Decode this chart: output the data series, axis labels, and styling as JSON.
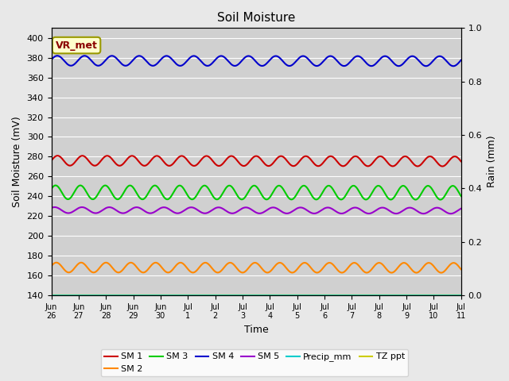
{
  "title": "Soil Moisture",
  "xlabel": "Time",
  "ylabel_left": "Soil Moisture (mV)",
  "ylabel_right": "Rain (mm)",
  "ylim_left": [
    140,
    410
  ],
  "ylim_right": [
    0.0,
    1.0
  ],
  "yticks_left": [
    140,
    160,
    180,
    200,
    220,
    240,
    260,
    280,
    300,
    320,
    340,
    360,
    380,
    400
  ],
  "yticks_right": [
    0.0,
    0.2,
    0.4,
    0.6,
    0.8,
    1.0
  ],
  "background_color": "#e8e8e8",
  "plot_bg_color": "#d0d0d0",
  "annotation_text": "VR_met",
  "annotation_bg": "#ffffcc",
  "annotation_fg": "#8b0000",
  "series": {
    "SM1": {
      "color": "#cc0000",
      "base": 276,
      "amplitude": 5,
      "trend": -0.05,
      "freq_per_day": 1.1,
      "phase": 0.0
    },
    "SM2": {
      "color": "#ff8800",
      "base": 168,
      "amplitude": 5,
      "trend": -0.02,
      "freq_per_day": 1.1,
      "phase": 0.3
    },
    "SM3": {
      "color": "#00cc00",
      "base": 244,
      "amplitude": 7,
      "trend": -0.03,
      "freq_per_day": 1.1,
      "phase": 0.5
    },
    "SM4": {
      "color": "#0000cc",
      "base": 377,
      "amplitude": 5,
      "trend": -0.03,
      "freq_per_day": 1.0,
      "phase": 0.2
    },
    "SM5": {
      "color": "#9900cc",
      "base": 226,
      "amplitude": 3,
      "trend": -0.04,
      "freq_per_day": 1.0,
      "phase": 0.8
    },
    "Precip_mm": {
      "color": "#00cccc",
      "base": 0,
      "amplitude": 0,
      "trend": 0,
      "freq_per_day": 0,
      "phase": 0
    },
    "TZ_ppt": {
      "color": "#cccc00",
      "base": 140,
      "amplitude": 0,
      "trend": 0,
      "freq_per_day": 0,
      "phase": 0
    }
  },
  "legend_labels": [
    "SM 1",
    "SM 2",
    "SM 3",
    "SM 4",
    "SM 5",
    "Precip_mm",
    "TZ ppt"
  ],
  "legend_colors": [
    "#cc0000",
    "#ff8800",
    "#00cc00",
    "#0000cc",
    "#9900cc",
    "#00cccc",
    "#cccc00"
  ],
  "xtick_labels": [
    "Jun\n26",
    "Jun\n27",
    "Jun\n28",
    "Jun\n29",
    "Jun\n30",
    "Jul\n1",
    "Jul\n2",
    "Jul\n3",
    "Jul\n4",
    "Jul\n5",
    "Jul\n6",
    "Jul\n7",
    "Jul\n8",
    "Jul\n9",
    "Jul\n10",
    "Jul\n11"
  ],
  "n_points": 2000,
  "n_days": 15
}
